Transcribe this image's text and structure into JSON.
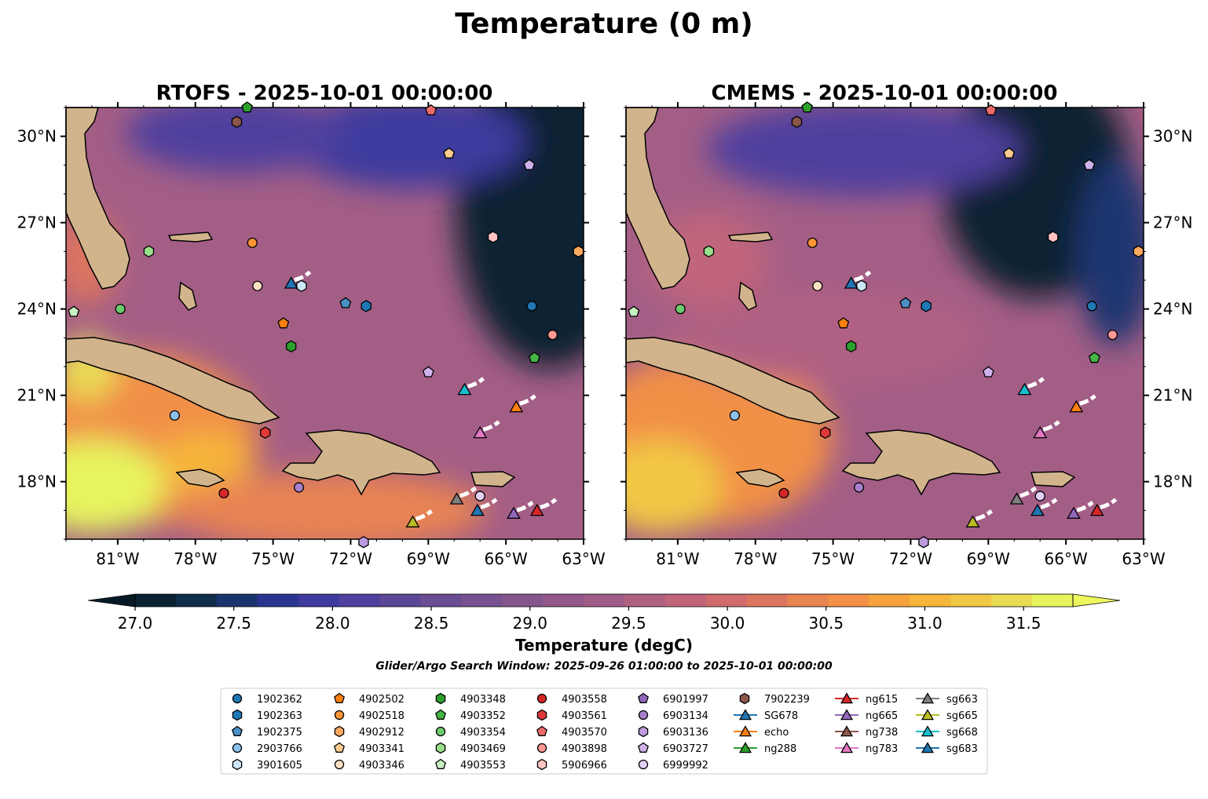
{
  "figure": {
    "title": "Temperature (0 m)",
    "search_window": "Glider/Argo Search Window: 2025-09-26 01:00:00 to 2025-10-01 00:00:00"
  },
  "chart_data": {
    "type": "heatmap",
    "map_extent": {
      "lon": [
        -83,
        -63
      ],
      "lat": [
        16,
        31
      ]
    },
    "xticks": [
      "81°W",
      "78°W",
      "75°W",
      "72°W",
      "69°W",
      "66°W",
      "63°W"
    ],
    "xtick_values": [
      -81,
      -78,
      -75,
      -72,
      -69,
      -66,
      -63
    ],
    "yticks": [
      "18°N",
      "21°N",
      "24°N",
      "27°N",
      "30°N"
    ],
    "ytick_values": [
      18,
      21,
      24,
      27,
      30
    ],
    "panels": [
      {
        "id": "rtofs",
        "title": "RTOFS - 2025-10-01 00:00:00",
        "ylabels_side": "left"
      },
      {
        "id": "cmems",
        "title": "CMEMS - 2025-10-01 00:00:00",
        "ylabels_side": "right"
      }
    ],
    "colorbar": {
      "label": "Temperature (degC)",
      "range": [
        27.0,
        31.75
      ],
      "step": 0.25,
      "extend": "both",
      "tick_labels": [
        "27.0",
        "27.5",
        "28.0",
        "28.5",
        "29.0",
        "29.5",
        "30.0",
        "30.5",
        "31.0",
        "31.5"
      ],
      "tick_values": [
        27.0,
        27.5,
        28.0,
        28.5,
        29.0,
        29.5,
        30.0,
        30.5,
        31.0,
        31.5
      ],
      "colors": [
        "#0a2232",
        "#0f2d4c",
        "#1a3470",
        "#2a3590",
        "#3e3a9e",
        "#4f3f9e",
        "#5c4697",
        "#6a4d92",
        "#785290",
        "#85568e",
        "#93598b",
        "#a05d87",
        "#b06182",
        "#c1657b",
        "#d06c6d",
        "#dc7560",
        "#e88352",
        "#f19046",
        "#f6a23d",
        "#f6b53b",
        "#f1c845",
        "#eadb55",
        "#e6f45e"
      ],
      "under_color": "#061a26",
      "over_color": "#eef65e"
    },
    "legend": {
      "columns": [
        [
          {
            "label": "1902362",
            "marker": "circle",
            "color": "#1f77b4"
          },
          {
            "label": "1902363",
            "marker": "hexagon",
            "color": "#1f77b4"
          },
          {
            "label": "1902375",
            "marker": "pentagon",
            "color": "#4a90c6"
          },
          {
            "label": "2903766",
            "marker": "circle",
            "color": "#8cc2eb"
          },
          {
            "label": "3901605",
            "marker": "hexagon",
            "color": "#cfe7fa"
          }
        ],
        [
          {
            "label": "4902502",
            "marker": "pentagon",
            "color": "#ff7f0e"
          },
          {
            "label": "4902518",
            "marker": "circle",
            "color": "#ff9633"
          },
          {
            "label": "4902912",
            "marker": "hexagon",
            "color": "#ffaa5e"
          },
          {
            "label": "4903341",
            "marker": "pentagon",
            "color": "#ffcc8f"
          },
          {
            "label": "4903346",
            "marker": "circle",
            "color": "#ffe2c4"
          }
        ],
        [
          {
            "label": "4903348",
            "marker": "hexagon",
            "color": "#2ca02c"
          },
          {
            "label": "4903352",
            "marker": "pentagon",
            "color": "#45b445"
          },
          {
            "label": "4903354",
            "marker": "circle",
            "color": "#6dcc6d"
          },
          {
            "label": "4903469",
            "marker": "hexagon",
            "color": "#98df8a"
          },
          {
            "label": "4903553",
            "marker": "pentagon",
            "color": "#c8f0c0"
          }
        ],
        [
          {
            "label": "4903558",
            "marker": "circle",
            "color": "#d62728"
          },
          {
            "label": "4903561",
            "marker": "hexagon",
            "color": "#e0393a"
          },
          {
            "label": "4903570",
            "marker": "pentagon",
            "color": "#ef6b6b"
          },
          {
            "label": "4903898",
            "marker": "circle",
            "color": "#ff9896"
          },
          {
            "label": "5906966",
            "marker": "hexagon",
            "color": "#ffc4c2"
          }
        ],
        [
          {
            "label": "6901997",
            "marker": "pentagon",
            "color": "#9467bd"
          },
          {
            "label": "6903134",
            "marker": "circle",
            "color": "#a77fcc"
          },
          {
            "label": "6903136",
            "marker": "hexagon",
            "color": "#bb99dd"
          },
          {
            "label": "6903727",
            "marker": "pentagon",
            "color": "#cdb3ea"
          },
          {
            "label": "6999992",
            "marker": "circle",
            "color": "#e3d0f7"
          }
        ],
        [
          {
            "label": "7902239",
            "marker": "hexagon",
            "color": "#8c564b"
          },
          {
            "label": "SG678",
            "marker": "triangle",
            "color": "#1f77b4",
            "line": true
          },
          {
            "label": "echo",
            "marker": "triangle",
            "color": "#ff7f0e",
            "line": true
          },
          {
            "label": "ng288",
            "marker": "triangle",
            "color": "#2ca02c",
            "line": true
          }
        ],
        [
          {
            "label": "ng615",
            "marker": "triangle",
            "color": "#d62728",
            "line": true
          },
          {
            "label": "ng665",
            "marker": "triangle",
            "color": "#9467bd",
            "line": true
          },
          {
            "label": "ng738",
            "marker": "triangle",
            "color": "#8c564b",
            "line": true
          },
          {
            "label": "ng783",
            "marker": "triangle",
            "color": "#e377c2",
            "line": true
          }
        ],
        [
          {
            "label": "sg663",
            "marker": "triangle",
            "color": "#7f7f7f",
            "line": true
          },
          {
            "label": "sg665",
            "marker": "triangle",
            "color": "#bcbd22",
            "line": true
          },
          {
            "label": "sg668",
            "marker": "triangle",
            "color": "#17becf",
            "line": true
          },
          {
            "label": "sg683",
            "marker": "triangle",
            "color": "#1f77b4",
            "line": true
          }
        ]
      ]
    },
    "observations": [
      {
        "id": "7902239",
        "lon": -76.4,
        "lat": 30.5,
        "marker": "hexagon",
        "color": "#8c564b"
      },
      {
        "id": "4903570",
        "lon": -68.9,
        "lat": 30.9,
        "marker": "pentagon",
        "color": "#ef6b6b"
      },
      {
        "id": "4903341",
        "lon": -68.2,
        "lat": 29.4,
        "marker": "pentagon",
        "color": "#ffcc8f"
      },
      {
        "id": "6903727",
        "lon": -65.1,
        "lat": 29.0,
        "marker": "pentagon",
        "color": "#cdb3ea"
      },
      {
        "id": "5906966",
        "lon": -66.5,
        "lat": 26.5,
        "marker": "hexagon",
        "color": "#ffc4c2"
      },
      {
        "id": "4902912",
        "lon": -63.2,
        "lat": 26.0,
        "marker": "hexagon",
        "color": "#ffaa5e"
      },
      {
        "id": "4903469",
        "lon": -79.8,
        "lat": 26.0,
        "marker": "hexagon",
        "color": "#98df8a"
      },
      {
        "id": "4902518",
        "lon": -75.8,
        "lat": 26.3,
        "marker": "circle",
        "color": "#ff9633"
      },
      {
        "id": "4903346",
        "lon": -75.6,
        "lat": 24.8,
        "marker": "circle",
        "color": "#ffe2c4"
      },
      {
        "id": "3901605",
        "lon": -73.9,
        "lat": 24.8,
        "marker": "hexagon",
        "color": "#cfe7fa"
      },
      {
        "id": "1902375",
        "lon": -72.2,
        "lat": 24.2,
        "marker": "pentagon",
        "color": "#4a90c6"
      },
      {
        "id": "1902363",
        "lon": -71.4,
        "lat": 24.1,
        "marker": "hexagon",
        "color": "#1f77b4"
      },
      {
        "id": "1902362",
        "lon": -65.0,
        "lat": 24.1,
        "marker": "circle",
        "color": "#1f77b4"
      },
      {
        "id": "4903553",
        "lon": -82.7,
        "lat": 23.9,
        "marker": "pentagon",
        "color": "#c8f0c0"
      },
      {
        "id": "4903354",
        "lon": -80.9,
        "lat": 24.0,
        "marker": "circle",
        "color": "#6dcc6d"
      },
      {
        "id": "4902502",
        "lon": -74.6,
        "lat": 23.5,
        "marker": "pentagon",
        "color": "#ff7f0e"
      },
      {
        "id": "4903348",
        "lon": -74.3,
        "lat": 22.7,
        "marker": "hexagon",
        "color": "#2ca02c"
      },
      {
        "id": "4903898",
        "lon": -64.2,
        "lat": 23.1,
        "marker": "circle",
        "color": "#ff9896"
      },
      {
        "id": "4903352",
        "lon": -64.9,
        "lat": 22.3,
        "marker": "pentagon",
        "color": "#45b445"
      },
      {
        "id": "6901997",
        "lon": -69.0,
        "lat": 21.8,
        "marker": "pentagon",
        "color": "#cdb3ea"
      },
      {
        "id": "2903766",
        "lon": -78.8,
        "lat": 20.3,
        "marker": "circle",
        "color": "#8cc2eb"
      },
      {
        "id": "4903561",
        "lon": -75.3,
        "lat": 19.7,
        "marker": "hexagon",
        "color": "#e0393a"
      },
      {
        "id": "4903558",
        "lon": -76.9,
        "lat": 17.6,
        "marker": "circle",
        "color": "#d62728"
      },
      {
        "id": "6903134",
        "lon": -74.0,
        "lat": 17.8,
        "marker": "circle",
        "color": "#a77fcc"
      },
      {
        "id": "6999992",
        "lon": -67.0,
        "lat": 17.5,
        "marker": "circle",
        "color": "#e3d0f7"
      },
      {
        "id": "6903136",
        "lon": -71.5,
        "lat": 15.9,
        "marker": "hexagon",
        "color": "#bb99dd"
      },
      {
        "id": "4903348b",
        "lon": -76.0,
        "lat": 31.0,
        "marker": "pentagon",
        "color": "#2ca02c"
      }
    ],
    "gliders": [
      {
        "id": "sg668",
        "lon": -67.6,
        "lat": 21.2,
        "color": "#17becf"
      },
      {
        "id": "echo",
        "lon": -65.6,
        "lat": 20.6,
        "color": "#ff7f0e"
      },
      {
        "id": "ng783",
        "lon": -67.0,
        "lat": 19.7,
        "color": "#e377c2"
      },
      {
        "id": "sg663",
        "lon": -67.9,
        "lat": 17.4,
        "color": "#7f7f7f"
      },
      {
        "id": "sg683",
        "lon": -67.1,
        "lat": 17.0,
        "color": "#1f77b4"
      },
      {
        "id": "ng665",
        "lon": -65.7,
        "lat": 16.9,
        "color": "#9467bd"
      },
      {
        "id": "ng615",
        "lon": -64.8,
        "lat": 17.0,
        "color": "#d62728"
      },
      {
        "id": "sg665",
        "lon": -69.6,
        "lat": 16.6,
        "color": "#bcbd22"
      },
      {
        "id": "SG678",
        "lon": -74.3,
        "lat": 24.9,
        "color": "#1f77b4"
      }
    ]
  }
}
